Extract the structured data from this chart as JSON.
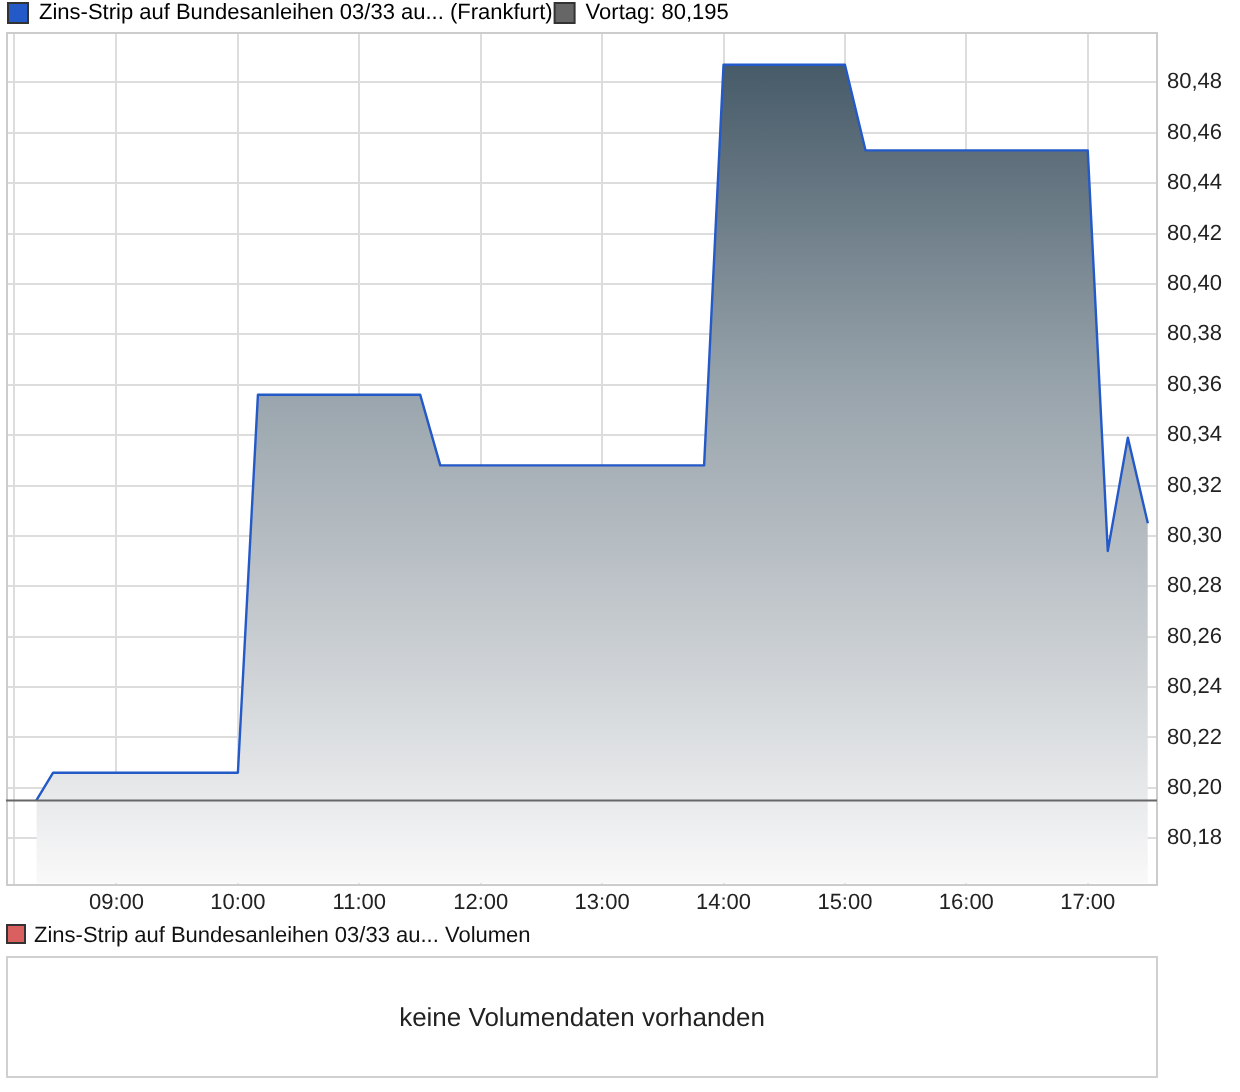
{
  "chart_data": [
    {
      "type": "area",
      "x": [
        8.34,
        8.478,
        10.0,
        10.165,
        11.502,
        11.667,
        13.84,
        14.0,
        15.0,
        15.17,
        17.0,
        17.165,
        17.33,
        17.495
      ],
      "series": [
        {
          "name": "Zins-Strip auf Bundesanleihen 03/33 au... (Frankfurt)",
          "color": "#2459c8",
          "values": [
            80.195,
            80.206,
            80.206,
            80.356,
            80.356,
            80.328,
            80.328,
            80.487,
            80.487,
            80.453,
            80.453,
            80.294,
            80.339,
            80.305
          ]
        }
      ],
      "xlim": [
        8.09,
        17.57
      ],
      "xticks": [
        {
          "value": 8.16,
          "label": null
        },
        {
          "value": 9,
          "label": "09:00"
        },
        {
          "value": 10,
          "label": "10:00"
        },
        {
          "value": 11,
          "label": "11:00"
        },
        {
          "value": 12,
          "label": "12:00"
        },
        {
          "value": 13,
          "label": "13:00"
        },
        {
          "value": 14,
          "label": "14:00"
        },
        {
          "value": 15,
          "label": "15:00"
        },
        {
          "value": 16,
          "label": "16:00"
        },
        {
          "value": 17,
          "label": "17:00"
        }
      ],
      "ylim": [
        80.162,
        80.5
      ],
      "yticks": [
        {
          "value": 80.18,
          "label": "80,18"
        },
        {
          "value": 80.2,
          "label": "80,20"
        },
        {
          "value": 80.22,
          "label": "80,22"
        },
        {
          "value": 80.24,
          "label": "80,24"
        },
        {
          "value": 80.26,
          "label": "80,26"
        },
        {
          "value": 80.28,
          "label": "80,28"
        },
        {
          "value": 80.3,
          "label": "80,30"
        },
        {
          "value": 80.32,
          "label": "80,32"
        },
        {
          "value": 80.34,
          "label": "80,34"
        },
        {
          "value": 80.36,
          "label": "80,36"
        },
        {
          "value": 80.38,
          "label": "80,38"
        },
        {
          "value": 80.4,
          "label": "80,40"
        },
        {
          "value": 80.42,
          "label": "80,42"
        },
        {
          "value": 80.44,
          "label": "80,44"
        },
        {
          "value": 80.46,
          "label": "80,46"
        },
        {
          "value": 80.48,
          "label": "80,48"
        }
      ],
      "ref_lines": [
        {
          "axis": "y",
          "value": 80.195,
          "label": "Vortag: 80,195",
          "color": "#666666"
        }
      ],
      "grid": true,
      "legend": "top left"
    },
    {
      "type": "other",
      "title": "Zins-Strip auf Bundesanleihen 03/33 au... Volumen",
      "color": "#d9605f",
      "annotations": [
        "keine Volumendaten vorhanden"
      ]
    }
  ]
}
